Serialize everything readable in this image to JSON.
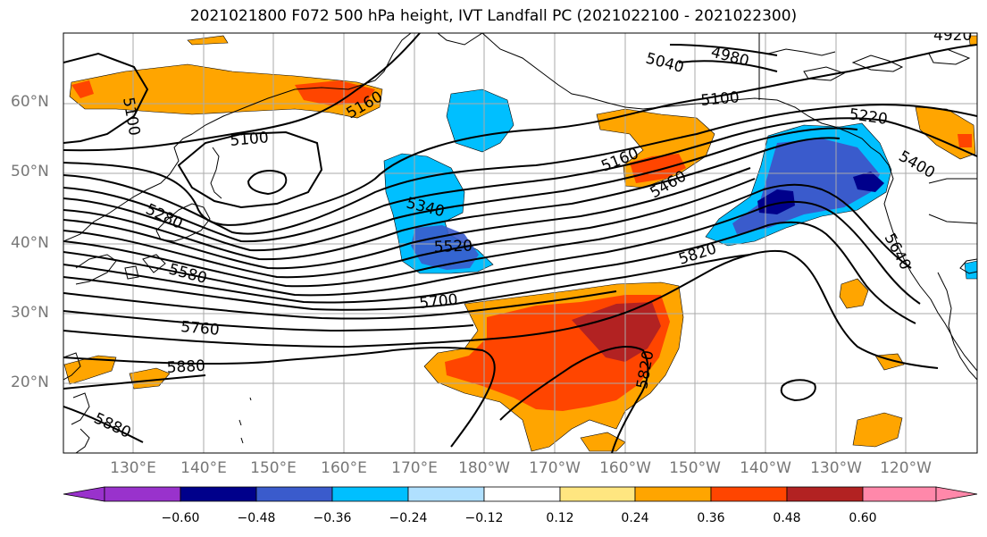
{
  "title": "2021021800 F072 500 hPa height, IVT Landfall PC (2021022100 - 2021022300)",
  "lat_labels": [
    "60°N",
    "50°N",
    "40°N",
    "30°N",
    "20°N"
  ],
  "lon_labels": [
    "130°E",
    "140°E",
    "150°E",
    "160°E",
    "170°E",
    "180°W",
    "170°W",
    "160°W",
    "150°W",
    "140°W",
    "130°W",
    "120°W"
  ],
  "colorbar": {
    "ticks": [
      "−0.60",
      "−0.48",
      "−0.36",
      "−0.24",
      "−0.12",
      "0.12",
      "0.24",
      "0.36",
      "0.48",
      "0.60"
    ],
    "colors": [
      "#9932cc",
      "#00008b",
      "#3a5bcc",
      "#00bfff",
      "#b0e0ff",
      "#ffffff",
      "#ffe680",
      "#ffa500",
      "#ff4500",
      "#b22222",
      "#ff88aa"
    ]
  },
  "contour_labels": {
    "c5100a": "5100",
    "c5160a": "5160",
    "c5040": "5040",
    "c4980": "4980",
    "c4920": "4920",
    "c5100b": "5100",
    "c5100c": "5100",
    "c5220": "5220",
    "c5400": "5400",
    "c5160b": "5160",
    "c5460": "5460",
    "c5340": "5340",
    "c5280": "5280",
    "c5520": "5520",
    "c5580": "5580",
    "c5820a": "5820",
    "c5640": "5640",
    "c5700": "5700",
    "c5760": "5760",
    "c5880a": "5880",
    "c5880b": "5880",
    "c5820b": "5820"
  }
}
